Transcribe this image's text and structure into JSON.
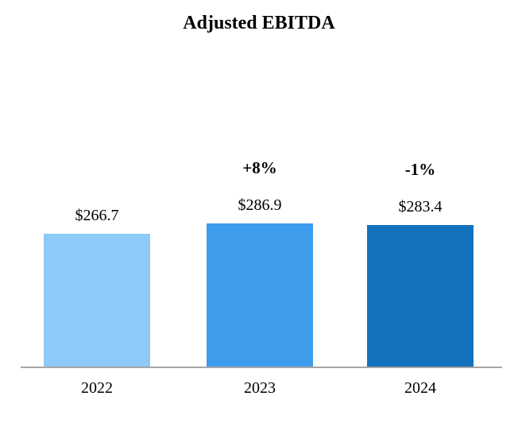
{
  "chart_data": {
    "type": "bar",
    "title": "Adjusted EBITDA",
    "categories": [
      "2022",
      "2023",
      "2024"
    ],
    "values": [
      266.7,
      286.9,
      283.4
    ],
    "value_labels": [
      "$266.7",
      "$286.9",
      "$283.4"
    ],
    "growth_labels": [
      "",
      "+8%",
      "-1%"
    ],
    "bar_colors": [
      "#8dcaf7",
      "#3d9cec",
      "#1272be"
    ],
    "axis_color": "#a6a6a6",
    "ylim": [
      0,
      300
    ],
    "grid": false,
    "legend": false,
    "xlabel": "",
    "ylabel": ""
  }
}
